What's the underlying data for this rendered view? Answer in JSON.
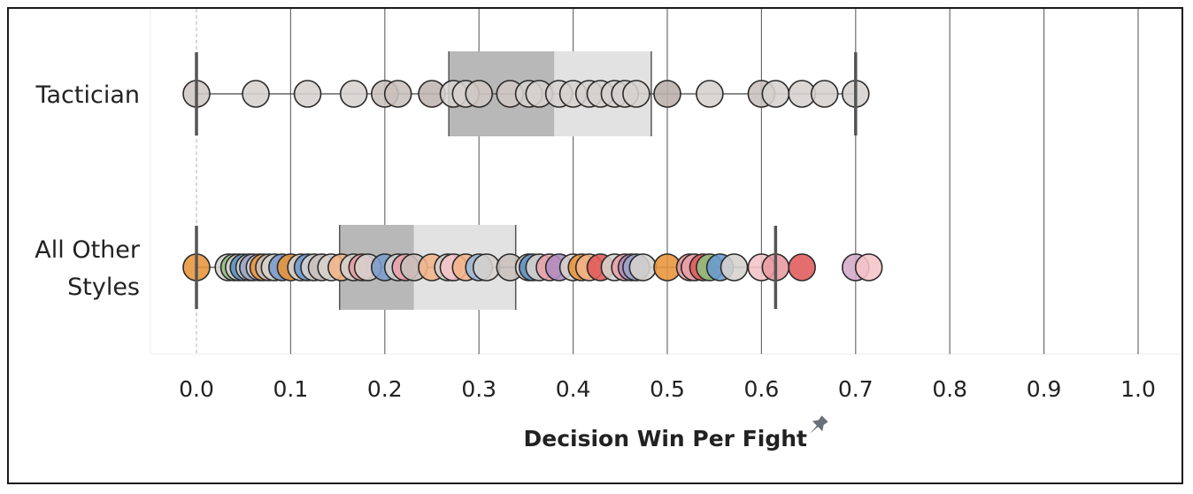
{
  "chart_data": {
    "type": "scatter",
    "subtype": "box-and-whisker jitter strip plot",
    "xlabel": "Decision Win Per Fight",
    "xlim": [
      -0.05,
      1.05
    ],
    "x_ticks": [
      "0.0",
      "0.1",
      "0.2",
      "0.3",
      "0.4",
      "0.5",
      "0.6",
      "0.7",
      "0.8",
      "0.9",
      "1.0"
    ],
    "x_tick_values": [
      0,
      0.1,
      0.2,
      0.3,
      0.4,
      0.5,
      0.6,
      0.7,
      0.8,
      0.9,
      1.0
    ],
    "grid": "vertical",
    "rows": [
      {
        "label": "Tactician",
        "box": {
          "whisker_low": 0.0,
          "q1": 0.268,
          "median": 0.38,
          "q3": 0.483,
          "whisker_high": 0.7
        },
        "points": [
          {
            "x": 0.0,
            "color": "#cfc7c4"
          },
          {
            "x": 0.063,
            "color": "#d6d1ce"
          },
          {
            "x": 0.118,
            "color": "#d6d1ce"
          },
          {
            "x": 0.167,
            "color": "#d6d1ce"
          },
          {
            "x": 0.2,
            "color": "#c9c0bc"
          },
          {
            "x": 0.214,
            "color": "#c9c0bc"
          },
          {
            "x": 0.25,
            "color": "#bfb5b1"
          },
          {
            "x": 0.273,
            "color": "#d6d1ce"
          },
          {
            "x": 0.286,
            "color": "#d6d1ce"
          },
          {
            "x": 0.3,
            "color": "#cfc7c4"
          },
          {
            "x": 0.333,
            "color": "#cfc7c4"
          },
          {
            "x": 0.353,
            "color": "#d6d1ce"
          },
          {
            "x": 0.364,
            "color": "#d6d1ce"
          },
          {
            "x": 0.385,
            "color": "#d6d1ce"
          },
          {
            "x": 0.4,
            "color": "#d6d1ce"
          },
          {
            "x": 0.417,
            "color": "#d6d1ce"
          },
          {
            "x": 0.429,
            "color": "#d6d1ce"
          },
          {
            "x": 0.444,
            "color": "#d6d1ce"
          },
          {
            "x": 0.455,
            "color": "#d6d1ce"
          },
          {
            "x": 0.467,
            "color": "#d6d1ce"
          },
          {
            "x": 0.5,
            "color": "#b9aeaa"
          },
          {
            "x": 0.545,
            "color": "#d6d1ce"
          },
          {
            "x": 0.6,
            "color": "#c9c0bc"
          },
          {
            "x": 0.615,
            "color": "#d6d1ce"
          },
          {
            "x": 0.643,
            "color": "#d6d1ce"
          },
          {
            "x": 0.667,
            "color": "#d6d1ce"
          },
          {
            "x": 0.7,
            "color": "#d6d1ce"
          }
        ]
      },
      {
        "label": "All Other\nStyles",
        "box": {
          "whisker_low": 0.0,
          "q1": 0.152,
          "median": 0.231,
          "q3": 0.339,
          "whisker_high": 0.615
        },
        "points": [
          {
            "x": 0.0,
            "color": "#e8943a"
          },
          {
            "x": 0.034,
            "color": "#d6d1ce"
          },
          {
            "x": 0.04,
            "color": "#8fbf7f"
          },
          {
            "x": 0.045,
            "color": "#d6d1ce"
          },
          {
            "x": 0.05,
            "color": "#5a8fc2"
          },
          {
            "x": 0.056,
            "color": "#d6d1ce"
          },
          {
            "x": 0.06,
            "color": "#9aa4c8"
          },
          {
            "x": 0.067,
            "color": "#d6d1ce"
          },
          {
            "x": 0.071,
            "color": "#e8943a"
          },
          {
            "x": 0.077,
            "color": "#c9c0bc"
          },
          {
            "x": 0.083,
            "color": "#d6d1ce"
          },
          {
            "x": 0.091,
            "color": "#7a9ccc"
          },
          {
            "x": 0.1,
            "color": "#e8943a"
          },
          {
            "x": 0.111,
            "color": "#d6d1ce"
          },
          {
            "x": 0.118,
            "color": "#6a9ad0"
          },
          {
            "x": 0.125,
            "color": "#d6d1ce"
          },
          {
            "x": 0.133,
            "color": "#c9c0bc"
          },
          {
            "x": 0.143,
            "color": "#d6d1ce"
          },
          {
            "x": 0.154,
            "color": "#f2b48a"
          },
          {
            "x": 0.167,
            "color": "#d6d1ce"
          },
          {
            "x": 0.176,
            "color": "#e89aa0"
          },
          {
            "x": 0.182,
            "color": "#d6d1ce"
          },
          {
            "x": 0.2,
            "color": "#7a9ccc"
          },
          {
            "x": 0.214,
            "color": "#d6d1ce"
          },
          {
            "x": 0.222,
            "color": "#e8a0a8"
          },
          {
            "x": 0.231,
            "color": "#c9c0bc"
          },
          {
            "x": 0.25,
            "color": "#f2b48a"
          },
          {
            "x": 0.267,
            "color": "#d6d1ce"
          },
          {
            "x": 0.273,
            "color": "#f4c4c8"
          },
          {
            "x": 0.286,
            "color": "#f2b48a"
          },
          {
            "x": 0.3,
            "color": "#9ab8dc"
          },
          {
            "x": 0.308,
            "color": "#d6d1ce"
          },
          {
            "x": 0.333,
            "color": "#c9c0bc"
          },
          {
            "x": 0.353,
            "color": "#d6d1ce"
          },
          {
            "x": 0.357,
            "color": "#5a8fc2"
          },
          {
            "x": 0.364,
            "color": "#d6d1ce"
          },
          {
            "x": 0.375,
            "color": "#e8a0a8"
          },
          {
            "x": 0.385,
            "color": "#b08cc0"
          },
          {
            "x": 0.4,
            "color": "#d6d1ce"
          },
          {
            "x": 0.409,
            "color": "#e8943a"
          },
          {
            "x": 0.417,
            "color": "#f2b48a"
          },
          {
            "x": 0.429,
            "color": "#e05a5a"
          },
          {
            "x": 0.444,
            "color": "#d6d1ce"
          },
          {
            "x": 0.455,
            "color": "#e8a0a8"
          },
          {
            "x": 0.462,
            "color": "#b08cc0"
          },
          {
            "x": 0.467,
            "color": "#9aa4c8"
          },
          {
            "x": 0.474,
            "color": "#d6d1ce"
          },
          {
            "x": 0.5,
            "color": "#e8943a"
          },
          {
            "x": 0.524,
            "color": "#e89aa0"
          },
          {
            "x": 0.529,
            "color": "#e8a0a8"
          },
          {
            "x": 0.538,
            "color": "#e05a5a"
          },
          {
            "x": 0.545,
            "color": "#8fbf7f"
          },
          {
            "x": 0.556,
            "color": "#6a9ad0"
          },
          {
            "x": 0.571,
            "color": "#d6d1ce"
          },
          {
            "x": 0.6,
            "color": "#f4c4c8"
          },
          {
            "x": 0.615,
            "color": "#e89aa0"
          },
          {
            "x": 0.643,
            "color": "#e05a5a"
          },
          {
            "x": 0.7,
            "color": "#d4a8c8"
          },
          {
            "x": 0.714,
            "color": "#f4c4c8"
          }
        ]
      }
    ]
  },
  "colors": {
    "box_lower": "#b8b8b8",
    "box_upper": "#e2e2e2",
    "whisker": "#555555",
    "gridline": "#6d6d6d",
    "zero_line": "#b0b0b0",
    "pin_icon": "#6b7078"
  },
  "icons": {
    "axis_title_icon": "pin-icon"
  }
}
